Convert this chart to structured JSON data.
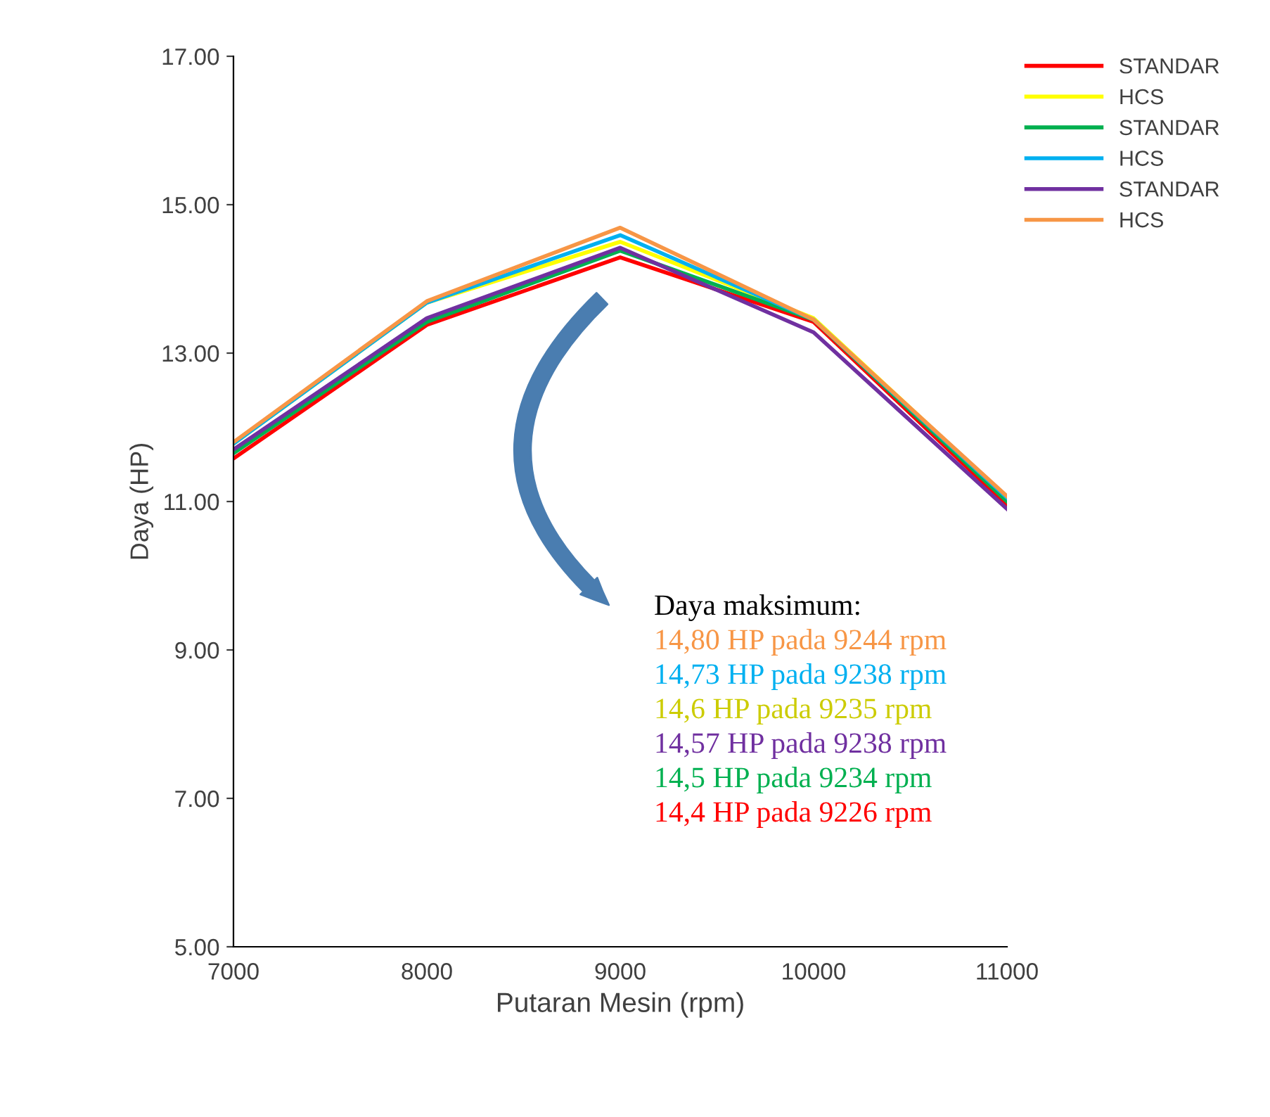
{
  "chart_data": {
    "type": "line",
    "xlabel": "Putaran Mesin (rpm)",
    "ylabel": "Daya (HP)",
    "x": [
      7000,
      8000,
      9000,
      10000,
      11000
    ],
    "series": [
      {
        "name": "STANDAR",
        "color": "#ff0000",
        "values": [
          11.58,
          13.38,
          14.29,
          13.42,
          10.95
        ]
      },
      {
        "name": "HCS",
        "color": "#ffff00",
        "values": [
          11.78,
          13.68,
          14.5,
          13.47,
          11.05
        ]
      },
      {
        "name": "STANDAR",
        "color": "#00b050",
        "values": [
          11.65,
          13.42,
          14.38,
          13.45,
          11.0
        ]
      },
      {
        "name": "HCS",
        "color": "#00b0f0",
        "values": [
          11.78,
          13.68,
          14.59,
          13.45,
          11.05
        ]
      },
      {
        "name": "STANDAR",
        "color": "#7030a0",
        "values": [
          11.7,
          13.47,
          14.42,
          13.28,
          10.9
        ]
      },
      {
        "name": "HCS",
        "color": "#f79646",
        "values": [
          11.8,
          13.7,
          14.69,
          13.45,
          11.07
        ]
      }
    ],
    "xlim": [
      7000,
      11000
    ],
    "xticks": [
      7000,
      8000,
      9000,
      10000,
      11000
    ],
    "ylim": [
      5,
      17
    ],
    "yticks": [
      {
        "value": 5,
        "label": "5.00"
      },
      {
        "value": 7,
        "label": "7.00"
      },
      {
        "value": 9,
        "label": "9.00"
      },
      {
        "value": 11,
        "label": "11.00"
      },
      {
        "value": 13,
        "label": "13.00"
      },
      {
        "value": 15,
        "label": "15.00"
      },
      {
        "value": 17,
        "label": "17.00"
      }
    ],
    "annotations": [
      "Daya maksimum:",
      "14,80 HP pada 9244 rpm",
      "14,73 HP pada 9238 rpm",
      "14,6 HP pada 9235 rpm",
      "14,57 HP pada 9238 rpm",
      "14,5 HP pada 9234 rpm",
      "14,4 HP pada 9226 rpm"
    ],
    "grid": false,
    "legend": "top right",
    "marker": "none",
    "line_style": "solid"
  }
}
